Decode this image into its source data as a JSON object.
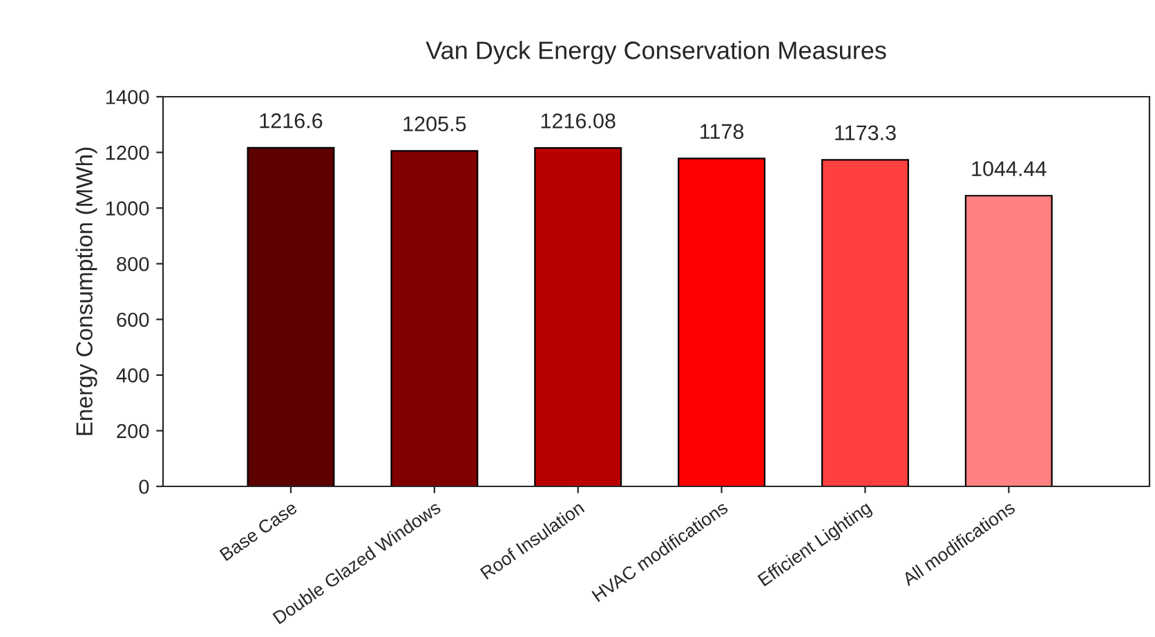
{
  "chart_data": {
    "type": "bar",
    "title": "Van Dyck Energy Conservation Measures",
    "ylabel": "Energy Consumption (MWh)",
    "categories": [
      "Base Case",
      "Double Glazed Windows",
      "Roof Insulation",
      "HVAC modifications",
      "Efficient Lighting",
      "All modifications"
    ],
    "values": [
      1216.6,
      1205.5,
      1216.08,
      1178,
      1173.3,
      1044.44
    ],
    "colors": [
      "#5c0000",
      "#800000",
      "#b80000",
      "#ff0000",
      "#ff4040",
      "#ff8080"
    ],
    "ylim": [
      0,
      1400
    ],
    "yticks": [
      0,
      200,
      400,
      600,
      800,
      1000,
      1200,
      1400
    ],
    "data_labels": true,
    "grid": false,
    "legend": false
  }
}
